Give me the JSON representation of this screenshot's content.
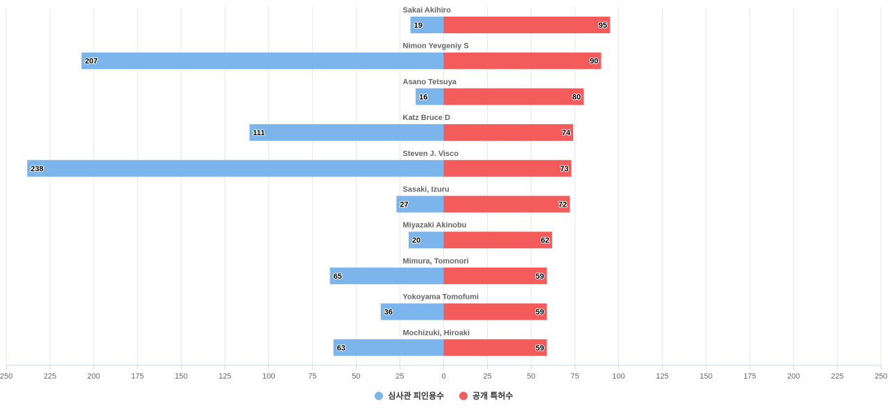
{
  "chart_data": {
    "type": "bar",
    "orientation": "horizontal-diverging",
    "categories": [
      "Sakai Akihiro",
      "Nimon Yevgeniy S",
      "Asano Tetsuya",
      "Katz Bruce D",
      "Steven J. Visco",
      "Sasaki, Izuru",
      "Miyazaki Akinobu",
      "Mimura, Tomonori",
      "Yokoyama Tomofumi",
      "Mochizuki, Hiroaki"
    ],
    "series": [
      {
        "name": "심사관 피인용수",
        "color": "#7cb5ec",
        "side": "left",
        "values": [
          19,
          207,
          16,
          111,
          238,
          27,
          20,
          65,
          36,
          63
        ]
      },
      {
        "name": "공개 특허수",
        "color": "#f45b5b",
        "side": "right",
        "values": [
          95,
          90,
          80,
          74,
          73,
          72,
          62,
          59,
          59,
          59
        ]
      }
    ],
    "x_ticks": [
      "250",
      "225",
      "200",
      "175",
      "150",
      "125",
      "100",
      "75",
      "50",
      "25",
      "0",
      "25",
      "50",
      "75",
      "100",
      "125",
      "150",
      "175",
      "200",
      "225",
      "250"
    ],
    "xlim": [
      -250,
      250
    ],
    "grid": true,
    "legend_position": "bottom-center"
  }
}
